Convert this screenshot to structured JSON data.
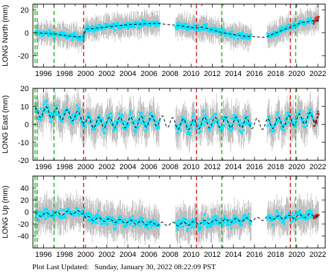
{
  "footer": {
    "label": "Plot Last Updated:",
    "timestamp": "Sunday, January 30, 2022 08:22:09 PST"
  },
  "colors": {
    "data_points": "#00e5ff",
    "error_bars": "#b8b8b8",
    "model_line": "#000000",
    "earthquake_lines": "#dd2222",
    "equipment_change_lines": "#22bb22",
    "recent_points": "#e02020"
  },
  "chart_data": [
    {
      "type": "scatter",
      "ylabel": "LONG North (mm)",
      "xlim": [
        1995.0,
        2022.7
      ],
      "ylim": [
        -30,
        25
      ],
      "yticks": [
        -20,
        0,
        20
      ],
      "xticks": [
        1996,
        1998,
        2000,
        2002,
        2004,
        2006,
        2008,
        2010,
        2012,
        2014,
        2016,
        2018,
        2020,
        2022
      ],
      "vlines_red": [
        1999.8,
        2010.5,
        2019.4
      ],
      "vlines_green": [
        1995.2,
        1995.4,
        1997.0,
        2012.9,
        2019.9
      ],
      "gaps": [
        [
          2007.0,
          2008.5
        ],
        [
          2015.7,
          2017.2
        ]
      ],
      "model": {
        "x": [
          1995.2,
          1997,
          1998.5,
          1999.8,
          2000,
          2002,
          2004,
          2006,
          2007,
          2009,
          2010.5,
          2011,
          2013,
          2015,
          2017,
          2019.4,
          2020.5,
          2022.1
        ],
        "y": [
          0,
          -1,
          -3,
          -4,
          3,
          5,
          7,
          8,
          8,
          6,
          4,
          5,
          0,
          -3,
          -4,
          5,
          9,
          11
        ]
      },
      "scatter_spread": 4,
      "error_spread": 9
    },
    {
      "type": "scatter",
      "ylabel": "LONG East (mm)",
      "xlim": [
        1995.0,
        2022.7
      ],
      "ylim": [
        -20,
        20
      ],
      "yticks": [
        -20,
        -10,
        0,
        10,
        20
      ],
      "xticks": [
        1996,
        1998,
        2000,
        2002,
        2004,
        2006,
        2008,
        2010,
        2012,
        2014,
        2016,
        2018,
        2020,
        2022
      ],
      "vlines_red": [
        1999.8,
        2010.5,
        2019.4
      ],
      "vlines_green": [
        1995.2,
        1995.4,
        1997.0,
        2012.9,
        2019.9
      ],
      "gaps": [
        [
          2007.0,
          2008.5
        ],
        [
          2015.7,
          2017.2
        ]
      ],
      "model": {
        "x": [
          1995.2,
          1996,
          1999.8,
          2000,
          2004,
          2007,
          2009,
          2010.5,
          2011,
          2013,
          2015,
          2017,
          2019.4,
          2020.5,
          2022.1
        ],
        "y": [
          6,
          7,
          4,
          1,
          1,
          2,
          0,
          0,
          1,
          1,
          1,
          0,
          2,
          3,
          4
        ]
      },
      "seasonal_amplitude": 3,
      "scatter_spread": 5,
      "error_spread": 9
    },
    {
      "type": "scatter",
      "ylabel": "LONG Up (mm)",
      "xlim": [
        1995.0,
        2022.7
      ],
      "ylim": [
        -60,
        60
      ],
      "yticks": [
        -40,
        -20,
        0,
        20,
        40
      ],
      "xticks": [
        1996,
        1998,
        2000,
        2002,
        2004,
        2006,
        2008,
        2010,
        2012,
        2014,
        2016,
        2018,
        2020,
        2022
      ],
      "vlines_red": [
        1999.8,
        2010.5,
        2019.4
      ],
      "vlines_green": [
        1995.2,
        1995.4,
        1997.0,
        2012.9,
        2019.9
      ],
      "gaps": [
        [
          2007.0,
          2008.5
        ],
        [
          2015.7,
          2017.2
        ]
      ],
      "model": {
        "x": [
          1995.2,
          1997,
          1999.8,
          2000,
          2003,
          2007,
          2009,
          2010.5,
          2013,
          2016,
          2019.4,
          2022.1
        ],
        "y": [
          -5,
          -3,
          0,
          -10,
          -15,
          -20,
          -20,
          -18,
          -15,
          -12,
          -8,
          -5
        ]
      },
      "seasonal_amplitude": 3,
      "scatter_spread": 12,
      "error_spread": 25
    }
  ]
}
